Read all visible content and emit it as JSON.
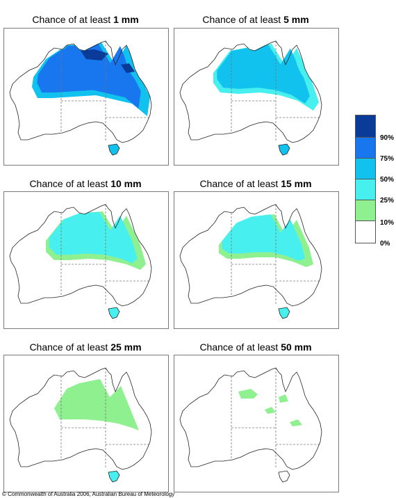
{
  "title_prefix": "Chance of at least",
  "panels": [
    {
      "amount": "1 mm",
      "level": 1
    },
    {
      "amount": "5 mm",
      "level": 2
    },
    {
      "amount": "10 mm",
      "level": 3
    },
    {
      "amount": "15 mm",
      "level": 4
    },
    {
      "amount": "25 mm",
      "level": 5
    },
    {
      "amount": "50 mm",
      "level": 6
    }
  ],
  "legend": {
    "bins": [
      {
        "label": "90%",
        "color": "#0a3b99"
      },
      {
        "label": "75%",
        "color": "#1877ef"
      },
      {
        "label": "50%",
        "color": "#12c2ee"
      },
      {
        "label": "25%",
        "color": "#47f0ef"
      },
      {
        "label": "10%",
        "color": "#8ff08f"
      },
      {
        "label": "0%",
        "color": "#ffffff"
      }
    ]
  },
  "copyright": "© Commonwealth of Australia 2006, Australian Bureau of Meteorology"
}
